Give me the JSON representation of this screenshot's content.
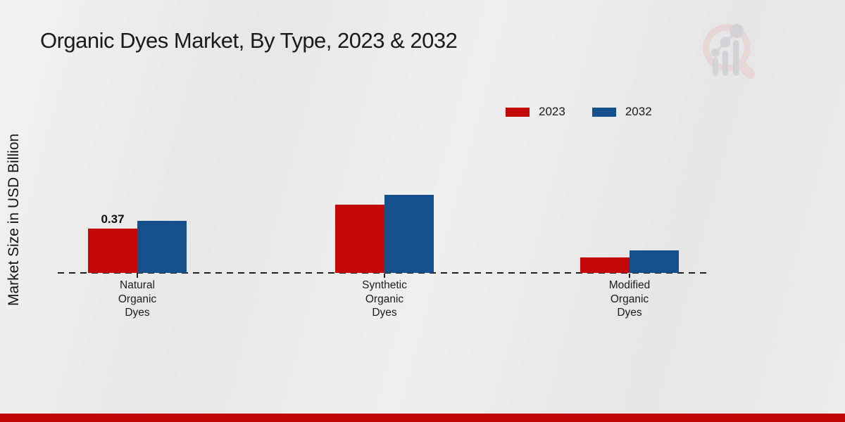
{
  "title": "Organic Dyes Market, By Type, 2023 & 2032",
  "y_axis_label": "Market Size in USD Billion",
  "legend": {
    "items": [
      {
        "label": "2023",
        "color": "#c40707"
      },
      {
        "label": "2032",
        "color": "#15508c"
      }
    ]
  },
  "chart_data": {
    "type": "bar",
    "title": "Organic Dyes Market, By Type, 2023 & 2032",
    "xlabel": "",
    "ylabel": "Market Size in USD Billion",
    "categories": [
      "Natural Organic Dyes",
      "Synthetic Organic Dyes",
      "Modified Organic Dyes"
    ],
    "category_label_lines": [
      [
        "Natural",
        "Organic",
        "Dyes"
      ],
      [
        "Synthetic",
        "Organic",
        "Dyes"
      ],
      [
        "Modified",
        "Organic",
        "Dyes"
      ]
    ],
    "series": [
      {
        "name": "2023",
        "color": "#c40707",
        "values": [
          0.37,
          0.57,
          0.13
        ]
      },
      {
        "name": "2032",
        "color": "#15508c",
        "values": [
          0.43,
          0.65,
          0.19
        ]
      }
    ],
    "data_labels": [
      {
        "series_index": 0,
        "category_index": 0,
        "text": "0.37"
      }
    ],
    "unit": "USD Billion",
    "ylim": [
      0,
      1.45
    ],
    "grid": false,
    "legend_position": "top-right",
    "axis_style": "dashed-zero-baseline-only",
    "note": "Only the 2023 Natural Organic Dyes bar carries a printed value (0.37); remaining values estimated from bar heights."
  },
  "colors": {
    "series_2023": "#c40707",
    "series_2032": "#15508c",
    "background": "#eaeaea",
    "footer_bar": "#c00505",
    "baseline": "#1f1f1f",
    "text": "#1a1a1a",
    "watermark_pink": "#e9d4d4",
    "watermark_gray": "#d2d2d5"
  },
  "branding": {
    "logo": "market-research-future-watermark"
  }
}
